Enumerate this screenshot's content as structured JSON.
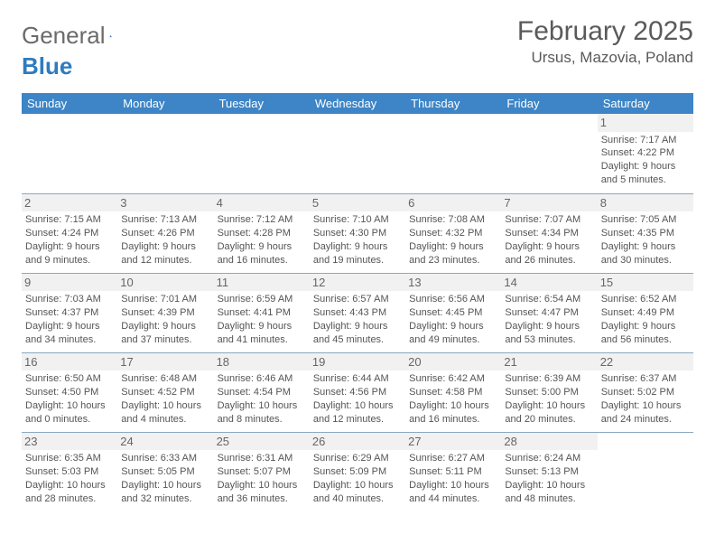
{
  "logo": {
    "text_gray": "General",
    "text_blue": "Blue"
  },
  "header": {
    "month_title": "February 2025",
    "location": "Ursus, Mazovia, Poland"
  },
  "colors": {
    "header_bar": "#3d85c6",
    "header_text": "#ffffff",
    "grid_line": "#8aa8c0",
    "daynum_bg": "#f1f1f1",
    "body_text": "#555555",
    "logo_gray": "#6b6b6b",
    "logo_blue": "#2f7bbf"
  },
  "weekdays": [
    "Sunday",
    "Monday",
    "Tuesday",
    "Wednesday",
    "Thursday",
    "Friday",
    "Saturday"
  ],
  "weeks": [
    [
      null,
      null,
      null,
      null,
      null,
      null,
      {
        "n": "1",
        "sunrise": "Sunrise: 7:17 AM",
        "sunset": "Sunset: 4:22 PM",
        "daylight1": "Daylight: 9 hours",
        "daylight2": "and 5 minutes."
      }
    ],
    [
      {
        "n": "2",
        "sunrise": "Sunrise: 7:15 AM",
        "sunset": "Sunset: 4:24 PM",
        "daylight1": "Daylight: 9 hours",
        "daylight2": "and 9 minutes."
      },
      {
        "n": "3",
        "sunrise": "Sunrise: 7:13 AM",
        "sunset": "Sunset: 4:26 PM",
        "daylight1": "Daylight: 9 hours",
        "daylight2": "and 12 minutes."
      },
      {
        "n": "4",
        "sunrise": "Sunrise: 7:12 AM",
        "sunset": "Sunset: 4:28 PM",
        "daylight1": "Daylight: 9 hours",
        "daylight2": "and 16 minutes."
      },
      {
        "n": "5",
        "sunrise": "Sunrise: 7:10 AM",
        "sunset": "Sunset: 4:30 PM",
        "daylight1": "Daylight: 9 hours",
        "daylight2": "and 19 minutes."
      },
      {
        "n": "6",
        "sunrise": "Sunrise: 7:08 AM",
        "sunset": "Sunset: 4:32 PM",
        "daylight1": "Daylight: 9 hours",
        "daylight2": "and 23 minutes."
      },
      {
        "n": "7",
        "sunrise": "Sunrise: 7:07 AM",
        "sunset": "Sunset: 4:34 PM",
        "daylight1": "Daylight: 9 hours",
        "daylight2": "and 26 minutes."
      },
      {
        "n": "8",
        "sunrise": "Sunrise: 7:05 AM",
        "sunset": "Sunset: 4:35 PM",
        "daylight1": "Daylight: 9 hours",
        "daylight2": "and 30 minutes."
      }
    ],
    [
      {
        "n": "9",
        "sunrise": "Sunrise: 7:03 AM",
        "sunset": "Sunset: 4:37 PM",
        "daylight1": "Daylight: 9 hours",
        "daylight2": "and 34 minutes."
      },
      {
        "n": "10",
        "sunrise": "Sunrise: 7:01 AM",
        "sunset": "Sunset: 4:39 PM",
        "daylight1": "Daylight: 9 hours",
        "daylight2": "and 37 minutes."
      },
      {
        "n": "11",
        "sunrise": "Sunrise: 6:59 AM",
        "sunset": "Sunset: 4:41 PM",
        "daylight1": "Daylight: 9 hours",
        "daylight2": "and 41 minutes."
      },
      {
        "n": "12",
        "sunrise": "Sunrise: 6:57 AM",
        "sunset": "Sunset: 4:43 PM",
        "daylight1": "Daylight: 9 hours",
        "daylight2": "and 45 minutes."
      },
      {
        "n": "13",
        "sunrise": "Sunrise: 6:56 AM",
        "sunset": "Sunset: 4:45 PM",
        "daylight1": "Daylight: 9 hours",
        "daylight2": "and 49 minutes."
      },
      {
        "n": "14",
        "sunrise": "Sunrise: 6:54 AM",
        "sunset": "Sunset: 4:47 PM",
        "daylight1": "Daylight: 9 hours",
        "daylight2": "and 53 minutes."
      },
      {
        "n": "15",
        "sunrise": "Sunrise: 6:52 AM",
        "sunset": "Sunset: 4:49 PM",
        "daylight1": "Daylight: 9 hours",
        "daylight2": "and 56 minutes."
      }
    ],
    [
      {
        "n": "16",
        "sunrise": "Sunrise: 6:50 AM",
        "sunset": "Sunset: 4:50 PM",
        "daylight1": "Daylight: 10 hours",
        "daylight2": "and 0 minutes."
      },
      {
        "n": "17",
        "sunrise": "Sunrise: 6:48 AM",
        "sunset": "Sunset: 4:52 PM",
        "daylight1": "Daylight: 10 hours",
        "daylight2": "and 4 minutes."
      },
      {
        "n": "18",
        "sunrise": "Sunrise: 6:46 AM",
        "sunset": "Sunset: 4:54 PM",
        "daylight1": "Daylight: 10 hours",
        "daylight2": "and 8 minutes."
      },
      {
        "n": "19",
        "sunrise": "Sunrise: 6:44 AM",
        "sunset": "Sunset: 4:56 PM",
        "daylight1": "Daylight: 10 hours",
        "daylight2": "and 12 minutes."
      },
      {
        "n": "20",
        "sunrise": "Sunrise: 6:42 AM",
        "sunset": "Sunset: 4:58 PM",
        "daylight1": "Daylight: 10 hours",
        "daylight2": "and 16 minutes."
      },
      {
        "n": "21",
        "sunrise": "Sunrise: 6:39 AM",
        "sunset": "Sunset: 5:00 PM",
        "daylight1": "Daylight: 10 hours",
        "daylight2": "and 20 minutes."
      },
      {
        "n": "22",
        "sunrise": "Sunrise: 6:37 AM",
        "sunset": "Sunset: 5:02 PM",
        "daylight1": "Daylight: 10 hours",
        "daylight2": "and 24 minutes."
      }
    ],
    [
      {
        "n": "23",
        "sunrise": "Sunrise: 6:35 AM",
        "sunset": "Sunset: 5:03 PM",
        "daylight1": "Daylight: 10 hours",
        "daylight2": "and 28 minutes."
      },
      {
        "n": "24",
        "sunrise": "Sunrise: 6:33 AM",
        "sunset": "Sunset: 5:05 PM",
        "daylight1": "Daylight: 10 hours",
        "daylight2": "and 32 minutes."
      },
      {
        "n": "25",
        "sunrise": "Sunrise: 6:31 AM",
        "sunset": "Sunset: 5:07 PM",
        "daylight1": "Daylight: 10 hours",
        "daylight2": "and 36 minutes."
      },
      {
        "n": "26",
        "sunrise": "Sunrise: 6:29 AM",
        "sunset": "Sunset: 5:09 PM",
        "daylight1": "Daylight: 10 hours",
        "daylight2": "and 40 minutes."
      },
      {
        "n": "27",
        "sunrise": "Sunrise: 6:27 AM",
        "sunset": "Sunset: 5:11 PM",
        "daylight1": "Daylight: 10 hours",
        "daylight2": "and 44 minutes."
      },
      {
        "n": "28",
        "sunrise": "Sunrise: 6:24 AM",
        "sunset": "Sunset: 5:13 PM",
        "daylight1": "Daylight: 10 hours",
        "daylight2": "and 48 minutes."
      },
      null
    ]
  ]
}
